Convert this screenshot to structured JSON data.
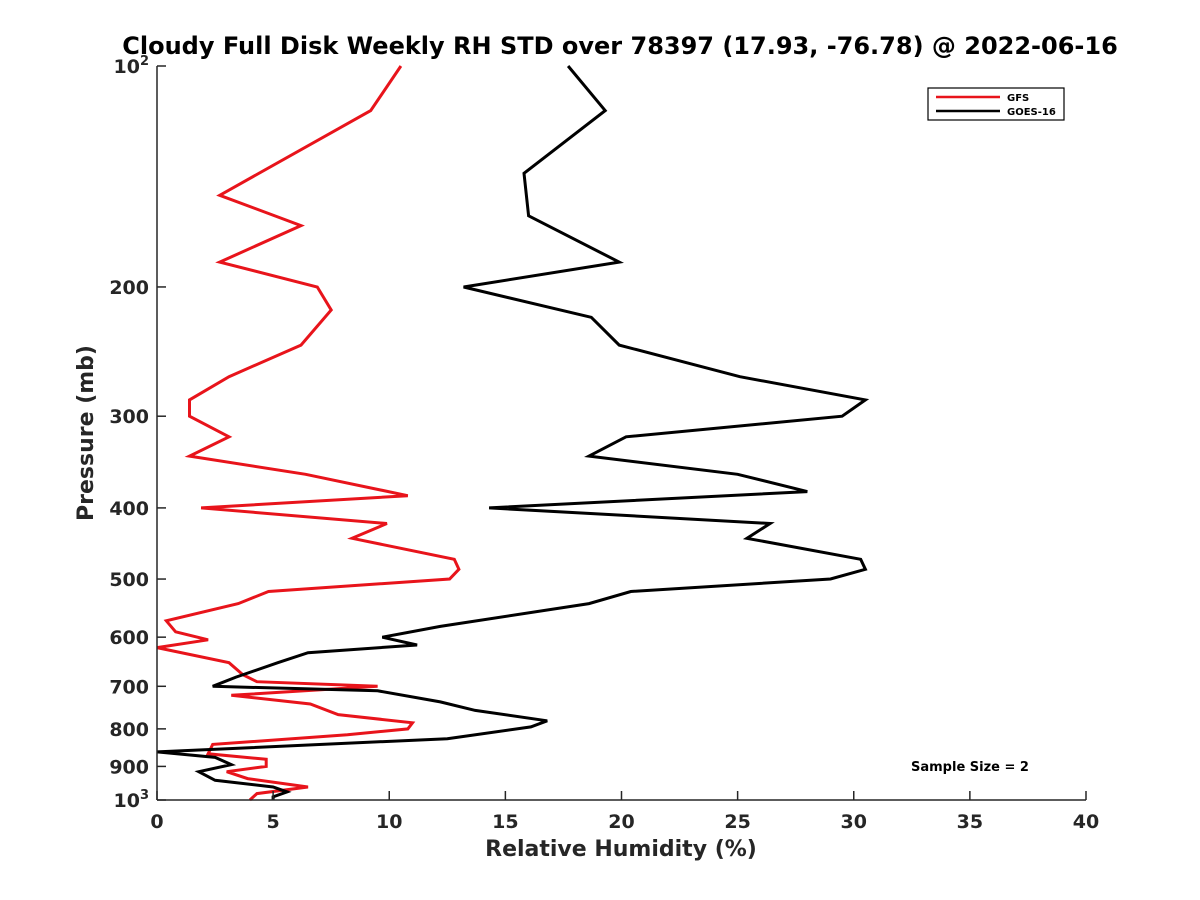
{
  "chart_data": {
    "type": "line",
    "title": "Cloudy Full Disk Weekly RH STD over 78397 (17.93, -76.78) @ 2022-06-16",
    "xlabel": "Relative Humidity (%)",
    "ylabel": "Pressure (mb)",
    "xlim": [
      0,
      40
    ],
    "ylim": [
      100,
      1000
    ],
    "y_scale": "log",
    "y_reversed": true,
    "grid": false,
    "legend_position": "top-right",
    "x_ticks": [
      "0",
      "5",
      "10",
      "15",
      "20",
      "25",
      "30",
      "35",
      "40"
    ],
    "y_ticks": [
      {
        "value": 100,
        "base": "10",
        "exp": "2"
      },
      {
        "value": 200,
        "label": "200"
      },
      {
        "value": 300,
        "label": "300"
      },
      {
        "value": 400,
        "label": "400"
      },
      {
        "value": 500,
        "label": "500"
      },
      {
        "value": 600,
        "label": "600"
      },
      {
        "value": 700,
        "label": "700"
      },
      {
        "value": 800,
        "label": "800"
      },
      {
        "value": 900,
        "label": "900"
      },
      {
        "value": 1000,
        "base": "10",
        "exp": "3"
      }
    ],
    "annotation": "Sample Size = 2",
    "series": [
      {
        "name": "GFS",
        "color": "#e8141b",
        "points": [
          {
            "x": 10.5,
            "y": 100
          },
          {
            "x": 9.2,
            "y": 115
          },
          {
            "x": 2.7,
            "y": 150
          },
          {
            "x": 6.2,
            "y": 165
          },
          {
            "x": 2.7,
            "y": 185
          },
          {
            "x": 6.9,
            "y": 200
          },
          {
            "x": 7.5,
            "y": 215
          },
          {
            "x": 6.2,
            "y": 240
          },
          {
            "x": 3.1,
            "y": 265
          },
          {
            "x": 1.4,
            "y": 285
          },
          {
            "x": 1.4,
            "y": 300
          },
          {
            "x": 3.1,
            "y": 320
          },
          {
            "x": 1.4,
            "y": 340
          },
          {
            "x": 6.4,
            "y": 360
          },
          {
            "x": 10.8,
            "y": 385
          },
          {
            "x": 1.9,
            "y": 400
          },
          {
            "x": 9.9,
            "y": 420
          },
          {
            "x": 8.4,
            "y": 440
          },
          {
            "x": 12.8,
            "y": 470
          },
          {
            "x": 13.0,
            "y": 485
          },
          {
            "x": 12.6,
            "y": 500
          },
          {
            "x": 4.8,
            "y": 520
          },
          {
            "x": 3.5,
            "y": 540
          },
          {
            "x": 0.4,
            "y": 570
          },
          {
            "x": 0.8,
            "y": 590
          },
          {
            "x": 2.2,
            "y": 605
          },
          {
            "x": 0.0,
            "y": 620
          },
          {
            "x": 3.1,
            "y": 650
          },
          {
            "x": 3.7,
            "y": 675
          },
          {
            "x": 4.3,
            "y": 690
          },
          {
            "x": 9.5,
            "y": 700
          },
          {
            "x": 3.2,
            "y": 720
          },
          {
            "x": 6.6,
            "y": 740
          },
          {
            "x": 7.8,
            "y": 765
          },
          {
            "x": 11.0,
            "y": 785
          },
          {
            "x": 10.8,
            "y": 800
          },
          {
            "x": 8.2,
            "y": 815
          },
          {
            "x": 2.4,
            "y": 840
          },
          {
            "x": 2.2,
            "y": 865
          },
          {
            "x": 4.7,
            "y": 880
          },
          {
            "x": 4.7,
            "y": 900
          },
          {
            "x": 3.0,
            "y": 915
          },
          {
            "x": 3.9,
            "y": 935
          },
          {
            "x": 6.5,
            "y": 960
          },
          {
            "x": 4.3,
            "y": 980
          },
          {
            "x": 4.0,
            "y": 1000
          }
        ]
      },
      {
        "name": "GOES-16",
        "color": "#000000",
        "points": [
          {
            "x": 17.7,
            "y": 100
          },
          {
            "x": 19.3,
            "y": 115
          },
          {
            "x": 15.8,
            "y": 140
          },
          {
            "x": 16.0,
            "y": 160
          },
          {
            "x": 19.9,
            "y": 185
          },
          {
            "x": 13.2,
            "y": 200
          },
          {
            "x": 18.7,
            "y": 220
          },
          {
            "x": 19.9,
            "y": 240
          },
          {
            "x": 25.1,
            "y": 265
          },
          {
            "x": 30.5,
            "y": 285
          },
          {
            "x": 29.5,
            "y": 300
          },
          {
            "x": 20.2,
            "y": 320
          },
          {
            "x": 18.6,
            "y": 340
          },
          {
            "x": 25.0,
            "y": 360
          },
          {
            "x": 28.0,
            "y": 380
          },
          {
            "x": 14.3,
            "y": 400
          },
          {
            "x": 26.4,
            "y": 420
          },
          {
            "x": 25.4,
            "y": 440
          },
          {
            "x": 30.3,
            "y": 470
          },
          {
            "x": 30.5,
            "y": 485
          },
          {
            "x": 29.0,
            "y": 500
          },
          {
            "x": 20.4,
            "y": 520
          },
          {
            "x": 18.6,
            "y": 540
          },
          {
            "x": 12.2,
            "y": 580
          },
          {
            "x": 9.7,
            "y": 600
          },
          {
            "x": 11.2,
            "y": 615
          },
          {
            "x": 6.5,
            "y": 630
          },
          {
            "x": 5.2,
            "y": 650
          },
          {
            "x": 3.4,
            "y": 680
          },
          {
            "x": 2.4,
            "y": 700
          },
          {
            "x": 9.5,
            "y": 710
          },
          {
            "x": 12.2,
            "y": 735
          },
          {
            "x": 13.7,
            "y": 755
          },
          {
            "x": 16.8,
            "y": 780
          },
          {
            "x": 16.1,
            "y": 795
          },
          {
            "x": 12.5,
            "y": 825
          },
          {
            "x": 0.0,
            "y": 860
          },
          {
            "x": 2.5,
            "y": 875
          },
          {
            "x": 3.2,
            "y": 895
          },
          {
            "x": 1.8,
            "y": 915
          },
          {
            "x": 2.5,
            "y": 940
          },
          {
            "x": 5.0,
            "y": 960
          },
          {
            "x": 5.6,
            "y": 975
          },
          {
            "x": 5.0,
            "y": 990
          },
          {
            "x": 5.0,
            "y": 1000
          }
        ]
      }
    ]
  }
}
